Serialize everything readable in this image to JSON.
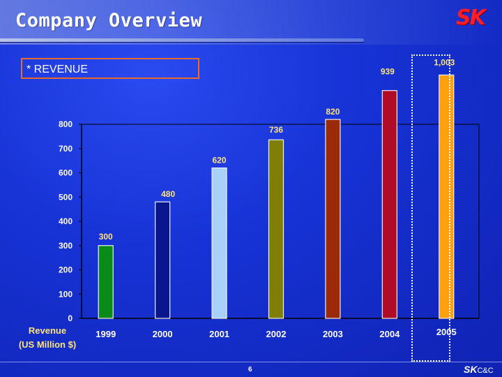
{
  "slide": {
    "title": "Company Overview",
    "section_label": "* REVENUE",
    "page_number": "6",
    "logo_top": "SK",
    "logo_bottom_sk": "SK",
    "logo_bottom_cc": "C&C"
  },
  "chart_data": {
    "type": "bar",
    "title": "",
    "xlabel": "Revenue\n(US Million $)",
    "ylabel": "",
    "ylim": [
      0,
      800
    ],
    "yticks": [
      0,
      100,
      200,
      300,
      400,
      500,
      600,
      700,
      800
    ],
    "grid": false,
    "categories": [
      "1999",
      "2000",
      "2001",
      "2002",
      "2003",
      "2004",
      "2005"
    ],
    "values": [
      300,
      480,
      620,
      736,
      820,
      939,
      1003
    ],
    "value_labels": [
      "300",
      "480",
      "620",
      "736",
      "820",
      "939",
      "1,003"
    ],
    "bar_colors": [
      "#0a8a18",
      "#0a1690",
      "#a8d0f8",
      "#7f7f08",
      "#9a2a08",
      "#b00c28",
      "#ffa010"
    ],
    "value_label_colors": [
      "#ffe27a",
      "#ffe27a",
      "#ffe27a",
      "#ffe27a",
      "#ffe27a",
      "#ffe27a",
      "#ffe27a"
    ],
    "highlighted_category": "2005"
  }
}
